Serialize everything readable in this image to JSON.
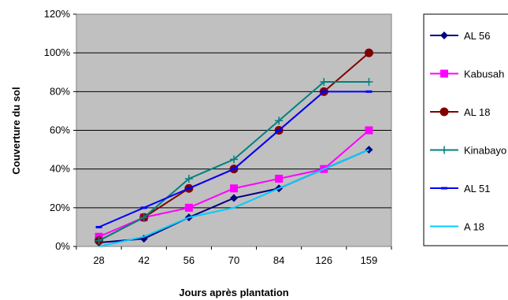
{
  "chart_data": {
    "type": "line",
    "xlabel": "Jours après plantation",
    "ylabel": "Couverture du sol",
    "categories": [
      "28",
      "42",
      "56",
      "70",
      "84",
      "126",
      "159"
    ],
    "y_ticks": [
      "0%",
      "20%",
      "40%",
      "60%",
      "80%",
      "100%",
      "120%"
    ],
    "ylim": [
      0,
      120
    ],
    "plot_background": "#C0C0C0",
    "grid": "horizontal",
    "legend_position": "right",
    "series": [
      {
        "name": "AL 56",
        "color": "#000080",
        "marker": "diamond",
        "values": [
          2,
          4,
          15,
          25,
          30,
          40,
          50
        ]
      },
      {
        "name": "Kabusah",
        "color": "#FF00FF",
        "marker": "square",
        "values": [
          5,
          15,
          20,
          30,
          35,
          40,
          60
        ]
      },
      {
        "name": "AL 18",
        "color": "#800000",
        "marker": "circle",
        "values": [
          3,
          15,
          30,
          40,
          60,
          80,
          100
        ]
      },
      {
        "name": "Kinabayo",
        "color": "#008080",
        "marker": "plus",
        "values": [
          3,
          15,
          35,
          45,
          65,
          85,
          85
        ]
      },
      {
        "name": "AL 51",
        "color": "#0000FF",
        "marker": "dash",
        "values": [
          10,
          20,
          30,
          40,
          60,
          80,
          80
        ]
      },
      {
        "name": "A 18",
        "color": "#00CCFF",
        "marker": "none",
        "values": [
          0,
          5,
          15,
          20,
          30,
          40,
          50
        ]
      }
    ]
  }
}
